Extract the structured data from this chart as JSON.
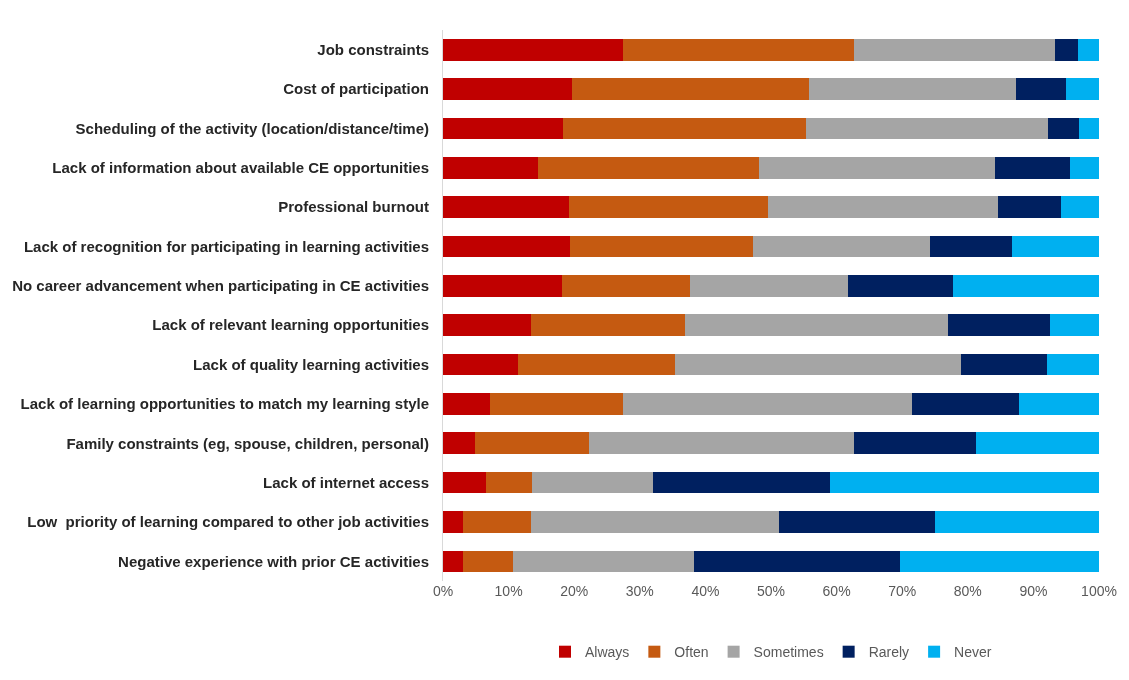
{
  "chart_data": {
    "type": "bar",
    "orientation": "horizontal",
    "stacked": true,
    "categories": [
      "Job constraints",
      "Cost of participation",
      "Scheduling of the activity (location/distance/time)",
      "Lack of information about available CE opportunities",
      "Professional burnout",
      "Lack of recognition for participating in learning activities",
      "No career advancement when participating in CE activities",
      "Lack of relevant learning opportunities",
      "Lack of quality learning activities",
      "Lack of learning opportunities to match my learning style",
      "Family constraints (eg, spouse, children, personal)",
      "Lack of internet access",
      "Low  priority of learning compared to other job activities",
      "Negative experience with prior CE activities"
    ],
    "series": [
      {
        "name": "Always",
        "color": "#c00000",
        "values": [
          27.5,
          19.6,
          18.3,
          14.5,
          19.2,
          19.4,
          18.1,
          13.4,
          11.5,
          7.2,
          4.9,
          6.5,
          3.0,
          3.0
        ]
      },
      {
        "name": "Often",
        "color": "#c55a11",
        "values": [
          35.1,
          36.2,
          37.0,
          33.6,
          30.4,
          27.8,
          19.5,
          23.5,
          23.8,
          20.2,
          17.4,
          7.1,
          10.4,
          7.6
        ]
      },
      {
        "name": "Sometimes",
        "color": "#a5a5a5",
        "values": [
          30.7,
          31.5,
          37.0,
          36.0,
          35.0,
          27.0,
          24.2,
          40.1,
          43.7,
          44.1,
          40.4,
          18.4,
          37.8,
          27.7
        ]
      },
      {
        "name": "Rarely",
        "color": "#002060",
        "values": [
          3.5,
          7.6,
          4.7,
          11.5,
          9.6,
          12.6,
          15.9,
          15.6,
          13.1,
          16.3,
          18.6,
          27.0,
          23.8,
          31.3
        ]
      },
      {
        "name": "Never",
        "color": "#00b0f0",
        "values": [
          3.2,
          5.1,
          3.0,
          4.4,
          5.8,
          13.2,
          22.3,
          7.4,
          7.9,
          12.2,
          18.7,
          41.0,
          25.0,
          30.4
        ]
      }
    ],
    "xlim": [
      0,
      100
    ],
    "xticks": [
      {
        "value": 0,
        "label": "0%"
      },
      {
        "value": 10,
        "label": "10%"
      },
      {
        "value": 20,
        "label": "20%"
      },
      {
        "value": 30,
        "label": "30%"
      },
      {
        "value": 40,
        "label": "40%"
      },
      {
        "value": 50,
        "label": "50%"
      },
      {
        "value": 60,
        "label": "60%"
      },
      {
        "value": 70,
        "label": "70%"
      },
      {
        "value": 80,
        "label": "80%"
      },
      {
        "value": 90,
        "label": "90%"
      },
      {
        "value": 100,
        "label": "100%"
      }
    ],
    "legend": "bottom"
  }
}
